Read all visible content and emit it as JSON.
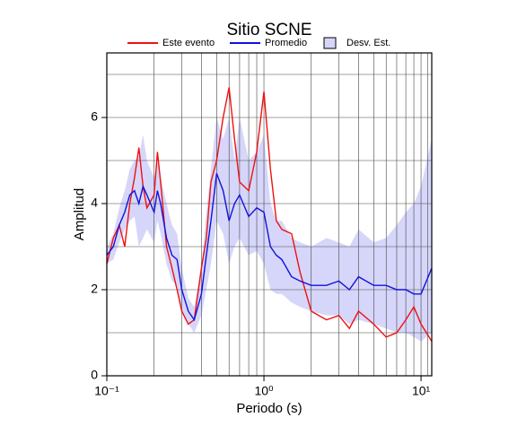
{
  "chart_data": {
    "type": "line",
    "title": "Sitio SCNE",
    "xlabel": "Periodo (s)",
    "ylabel": "Amplitud",
    "xscale": "log",
    "grid": true,
    "legend": "top",
    "xlim": [
      0.1,
      11.7
    ],
    "ylim": [
      0,
      7.5
    ],
    "xticks": [
      {
        "value": 0.1,
        "label": "10⁻¹"
      },
      {
        "value": 1,
        "label": "10⁰"
      },
      {
        "value": 10,
        "label": "10¹"
      }
    ],
    "xminor": [
      0.2,
      0.3,
      0.4,
      0.5,
      0.6,
      0.7,
      0.8,
      0.9,
      2,
      3,
      4,
      5,
      6,
      7,
      8,
      9,
      11
    ],
    "yticks": [
      0,
      2,
      4,
      6
    ],
    "yminor": [
      1,
      3,
      5,
      7
    ],
    "x": [
      0.1,
      0.11,
      0.12,
      0.13,
      0.14,
      0.15,
      0.16,
      0.17,
      0.18,
      0.2,
      0.21,
      0.22,
      0.24,
      0.26,
      0.28,
      0.3,
      0.33,
      0.36,
      0.4,
      0.43,
      0.46,
      0.5,
      0.55,
      0.6,
      0.65,
      0.7,
      0.8,
      0.9,
      1.0,
      1.1,
      1.2,
      1.3,
      1.5,
      1.7,
      2.0,
      2.5,
      3,
      3.5,
      4,
      5,
      6,
      7,
      8,
      9,
      10,
      11.7
    ],
    "band": {
      "name": "Desv. Est.",
      "color": "#d6d6fa",
      "upper": [
        3.0,
        3.3,
        3.9,
        4.3,
        4.8,
        5.0,
        5.1,
        5.6,
        5.0,
        4.6,
        5.0,
        4.6,
        4.0,
        3.5,
        3.3,
        2.5,
        1.8,
        1.6,
        2.5,
        3.8,
        4.8,
        6.0,
        5.5,
        6.0,
        5.0,
        6.0,
        5.0,
        5.2,
        5.6,
        4.0,
        3.6,
        3.6,
        3.2,
        3.1,
        3.0,
        3.2,
        3.1,
        3.0,
        3.4,
        3.1,
        3.2,
        3.5,
        3.8,
        4.0,
        4.4,
        5.5
      ],
      "lower": [
        2.6,
        2.7,
        3.1,
        3.4,
        3.6,
        3.7,
        3.0,
        3.2,
        3.4,
        3.1,
        3.6,
        3.3,
        2.6,
        2.2,
        2.1,
        1.5,
        1.2,
        1.0,
        1.4,
        2.0,
        2.6,
        3.6,
        3.3,
        2.6,
        3.0,
        3.2,
        2.8,
        2.9,
        2.6,
        2.0,
        1.9,
        1.9,
        1.7,
        1.6,
        1.5,
        1.4,
        1.4,
        1.2,
        1.3,
        1.2,
        1.1,
        1.0,
        1.0,
        0.9,
        0.8,
        1.0
      ]
    },
    "series": [
      {
        "name": "Este evento",
        "color": "#ee1111",
        "values": [
          2.6,
          3.2,
          3.5,
          3.0,
          4.0,
          4.6,
          5.3,
          4.4,
          3.9,
          4.2,
          5.2,
          4.5,
          3.0,
          2.5,
          2.0,
          1.5,
          1.2,
          1.3,
          2.5,
          3.2,
          4.5,
          5.0,
          6.0,
          6.7,
          5.5,
          4.5,
          4.3,
          5.2,
          6.6,
          4.8,
          3.6,
          3.4,
          3.3,
          2.4,
          1.5,
          1.3,
          1.4,
          1.1,
          1.5,
          1.2,
          0.9,
          1.0,
          1.3,
          1.6,
          1.2,
          0.8
        ]
      },
      {
        "name": "Promedio",
        "color": "#1111dd",
        "values": [
          2.8,
          3.0,
          3.5,
          3.8,
          4.2,
          4.3,
          4.0,
          4.4,
          4.2,
          3.8,
          4.3,
          4.0,
          3.2,
          2.8,
          2.7,
          2.0,
          1.5,
          1.3,
          1.9,
          2.8,
          3.6,
          4.7,
          4.3,
          3.6,
          4.0,
          4.2,
          3.7,
          3.9,
          3.8,
          3.0,
          2.8,
          2.7,
          2.3,
          2.2,
          2.1,
          2.1,
          2.2,
          2.0,
          2.3,
          2.1,
          2.1,
          2.0,
          2.0,
          1.9,
          1.9,
          2.5
        ]
      }
    ]
  }
}
